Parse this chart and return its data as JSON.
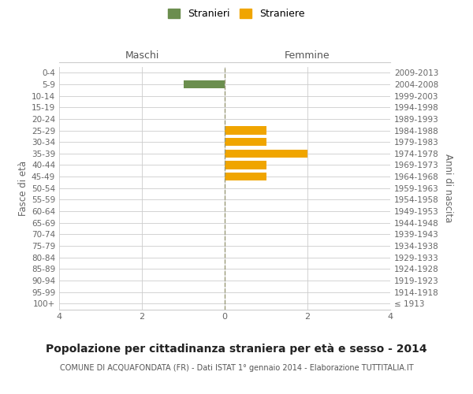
{
  "age_groups": [
    "100+",
    "95-99",
    "90-94",
    "85-89",
    "80-84",
    "75-79",
    "70-74",
    "65-69",
    "60-64",
    "55-59",
    "50-54",
    "45-49",
    "40-44",
    "35-39",
    "30-34",
    "25-29",
    "20-24",
    "15-19",
    "10-14",
    "5-9",
    "0-4"
  ],
  "birth_years": [
    "≤ 1913",
    "1914-1918",
    "1919-1923",
    "1924-1928",
    "1929-1933",
    "1934-1938",
    "1939-1943",
    "1944-1948",
    "1949-1953",
    "1954-1958",
    "1959-1963",
    "1964-1968",
    "1969-1973",
    "1974-1978",
    "1979-1983",
    "1984-1988",
    "1989-1993",
    "1994-1998",
    "1999-2003",
    "2004-2008",
    "2009-2013"
  ],
  "males": [
    0,
    0,
    0,
    0,
    0,
    0,
    0,
    0,
    0,
    0,
    0,
    0,
    0,
    0,
    0,
    0,
    0,
    0,
    0,
    1,
    0
  ],
  "females": [
    0,
    0,
    0,
    0,
    0,
    0,
    0,
    0,
    0,
    0,
    0,
    1,
    1,
    2,
    1,
    1,
    0,
    0,
    0,
    0,
    0
  ],
  "male_color": "#6b8e4e",
  "female_color": "#f0a500",
  "male_label": "Stranieri",
  "female_label": "Straniere",
  "xlim": 4,
  "title": "Popolazione per cittadinanza straniera per età e sesso - 2014",
  "subtitle": "COMUNE DI ACQUAFONDATA (FR) - Dati ISTAT 1° gennaio 2014 - Elaborazione TUTTITALIA.IT",
  "ylabel_left": "Fasce di età",
  "ylabel_right": "Anni di nascita",
  "header_left": "Maschi",
  "header_right": "Femmine",
  "background_color": "#ffffff",
  "grid_color": "#cccccc",
  "tick_color": "#666666",
  "center_line_color": "#999977",
  "bar_height": 0.7
}
